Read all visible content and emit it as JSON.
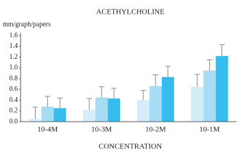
{
  "chart_data": {
    "type": "bar",
    "title": "ACETHYLCHOLINE",
    "y_label": "mm/graph/papers",
    "x_label": "CONCENTRATION",
    "categories": [
      "10-4M",
      "10-3M",
      "10-2M",
      "10-1M"
    ],
    "series": [
      {
        "color": "#d4eef9",
        "values": [
          0.05,
          0.22,
          0.4,
          0.65
        ],
        "errors": [
          0.22,
          0.21,
          0.18,
          0.23
        ]
      },
      {
        "color": "#a6dcf4",
        "values": [
          0.28,
          0.45,
          0.66,
          0.95
        ],
        "errors": [
          0.19,
          0.2,
          0.21,
          0.2
        ]
      },
      {
        "color": "#35bdef",
        "values": [
          0.25,
          0.43,
          0.83,
          1.22
        ],
        "errors": [
          0.19,
          0.19,
          0.2,
          0.21
        ]
      }
    ],
    "ylim": [
      0,
      1.6
    ],
    "yticks": [
      {
        "value": 0,
        "label": "0.0"
      },
      0.2,
      0.4,
      0.6,
      0.8,
      {
        "value": 1,
        "label": "1.0"
      },
      1.2,
      1.4,
      1.6
    ]
  }
}
